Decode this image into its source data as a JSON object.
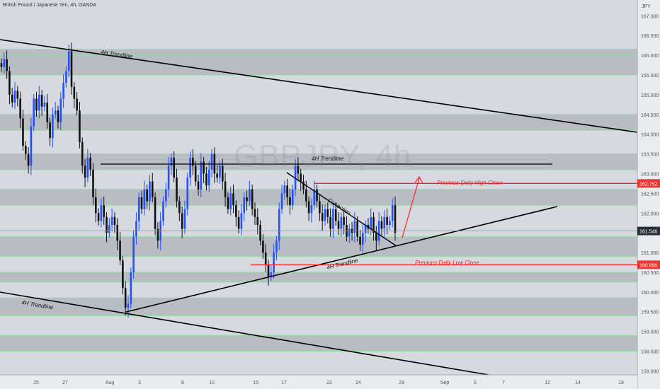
{
  "header": {
    "symbol_title": "British Pound / Japanese Yen, 4h, OANDA"
  },
  "watermark": {
    "text": "GBPJPY, 4h"
  },
  "axis": {
    "currency": "JPY",
    "y_ticks": [
      "167.000",
      "166.500",
      "166.000",
      "165.500",
      "165.000",
      "164.500",
      "164.000",
      "163.500",
      "163.000",
      "162.500",
      "162.000",
      "161.000",
      "160.500",
      "160.000",
      "159.500",
      "159.000",
      "158.500",
      "158.000"
    ],
    "x_ticks": [
      "25",
      "27",
      "Aug",
      "3",
      "8",
      "10",
      "15",
      "17",
      "22",
      "24",
      "29",
      "Sep",
      "5",
      "7",
      "12",
      "14",
      "19"
    ]
  },
  "price_labels": {
    "previous_high": "162.752",
    "current": "161.546",
    "previous_low": "160.690"
  },
  "annotations": {
    "trendline_top": "4H Trendline",
    "trendline_bottom": "4H Trendline",
    "trendline_horizontal": "4H Trendline",
    "trendline_support": "4H Trendline",
    "correction": "Correction",
    "prev_high": "Previous Daily High Close",
    "prev_low": "Previous Daily Low Close"
  },
  "colors": {
    "background": "#d6d9df",
    "band": "#b9bcc3",
    "band_edge": "#8fdc9f",
    "bull": "#2350ff",
    "bear": "#111111",
    "resistance": "#ff2222",
    "line": "#000000",
    "axis_bg": "#e9ebef"
  },
  "chart_data": {
    "type": "candlestick",
    "symbol": "British Pound / Japanese Yen, 4h, OANDA",
    "ylim": [
      157.9,
      167.4
    ],
    "y_unit": "JPY",
    "highlight_levels": {
      "previous_daily_high_close": 162.752,
      "current_price": 161.546,
      "previous_daily_low_close": 160.69
    },
    "zones": [
      [
        166.0,
        166.15
      ],
      [
        165.5,
        166.0
      ],
      [
        164.1,
        164.5
      ],
      [
        163.1,
        163.5
      ],
      [
        162.2,
        162.6
      ],
      [
        160.9,
        161.4
      ],
      [
        160.25,
        160.5
      ],
      [
        159.4,
        159.85
      ],
      [
        158.5,
        158.9
      ]
    ],
    "closes": [
      165.7,
      165.9,
      165.6,
      165.0,
      164.8,
      165.1,
      164.9,
      164.4,
      163.7,
      163.5,
      163.2,
      164.2,
      164.9,
      164.6,
      165.0,
      164.7,
      164.8,
      164.3,
      163.9,
      164.5,
      164.6,
      164.3,
      164.9,
      165.3,
      165.6,
      166.1,
      165.2,
      164.9,
      164.6,
      163.8,
      163.2,
      162.9,
      163.4,
      163.1,
      162.4,
      162.0,
      161.8,
      162.2,
      161.9,
      161.5,
      161.7,
      161.9,
      161.7,
      161.3,
      160.8,
      160.1,
      159.6,
      159.7,
      160.5,
      161.4,
      161.8,
      162.4,
      162.1,
      162.6,
      162.3,
      162.8,
      162.4,
      161.6,
      161.3,
      161.8,
      162.3,
      162.6,
      163.2,
      163.4,
      162.9,
      162.3,
      162.0,
      161.6,
      162.1,
      162.9,
      163.4,
      163.2,
      162.8,
      162.6,
      163.3,
      163.0,
      162.7,
      163.1,
      163.5,
      163.0,
      162.9,
      163.2,
      162.8,
      162.4,
      162.1,
      162.5,
      162.2,
      161.9,
      161.6,
      162.0,
      162.4,
      162.3,
      162.6,
      162.1,
      161.9,
      161.7,
      161.3,
      161.0,
      160.7,
      160.4,
      160.5,
      161.0,
      161.3,
      162.1,
      162.5,
      162.7,
      162.4,
      162.2,
      162.6,
      163.2,
      163.0,
      162.8,
      162.6,
      162.3,
      162.0,
      162.2,
      162.6,
      162.3,
      162.0,
      161.8,
      162.1,
      161.9,
      161.6,
      162.1,
      161.8,
      161.6,
      161.9,
      161.7,
      161.4,
      161.6,
      161.5,
      161.8,
      161.4,
      161.2,
      161.5,
      161.7,
      161.6,
      161.9,
      161.5,
      161.3,
      161.8,
      161.6,
      161.9,
      161.7,
      161.8,
      162.2,
      161.5
    ]
  }
}
